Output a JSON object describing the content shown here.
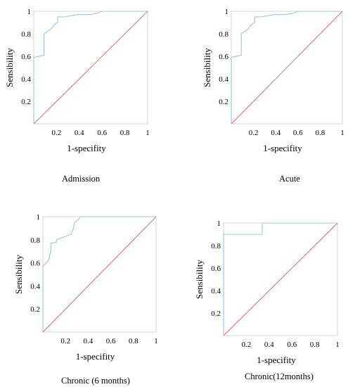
{
  "chart_data": [
    {
      "type": "line",
      "caption": "Admission",
      "xlabel": "1-specifity",
      "ylabel": "Sensibility",
      "xlim": [
        0,
        1
      ],
      "ylim": [
        0,
        1
      ],
      "xticks": [
        "0.2",
        "0.4",
        "0.6",
        "0.8",
        "1"
      ],
      "yticks": [
        "0.2",
        "0.4",
        "0.6",
        "0.8",
        "1"
      ],
      "grid": false,
      "roc_color": "#9cc3e6",
      "reference_color": "#e06a72",
      "x": [
        0,
        0,
        0.09,
        0.09,
        0.15,
        0.18,
        0.21,
        0.21,
        0.27,
        0.38,
        0.47,
        0.55,
        0.6,
        1.0
      ],
      "y": [
        0,
        0.59,
        0.61,
        0.8,
        0.84,
        0.88,
        0.9,
        0.95,
        0.95,
        0.97,
        0.97,
        0.98,
        1.0,
        1.0
      ],
      "reference_line": [
        [
          0,
          0
        ],
        [
          1,
          1
        ]
      ]
    },
    {
      "type": "line",
      "caption": "Acute",
      "xlabel": "1-specifity",
      "ylabel": "Sensibility",
      "xlim": [
        0,
        1
      ],
      "ylim": [
        0,
        1
      ],
      "xticks": [
        "0.2",
        "0.4",
        "0.6",
        "0.8",
        "1"
      ],
      "yticks": [
        "0.2",
        "0.4",
        "0.6",
        "0.8",
        "1"
      ],
      "grid": false,
      "roc_color": "#9cc3e6",
      "reference_color": "#e06a72",
      "x": [
        0,
        0,
        0.09,
        0.09,
        0.15,
        0.18,
        0.21,
        0.21,
        0.27,
        0.38,
        0.47,
        0.55,
        0.6,
        1.0
      ],
      "y": [
        0,
        0.59,
        0.61,
        0.8,
        0.84,
        0.88,
        0.9,
        0.95,
        0.95,
        0.97,
        0.97,
        0.98,
        1.0,
        1.0
      ],
      "reference_line": [
        [
          0,
          0
        ],
        [
          1,
          1
        ]
      ]
    },
    {
      "type": "line",
      "caption": "Chronic (6 months)",
      "xlabel": "1-specifity",
      "ylabel": "Sensibility",
      "xlim": [
        0,
        1
      ],
      "ylim": [
        0,
        1
      ],
      "xticks": [
        "0.2",
        "0.4",
        "0.6",
        "0.8",
        "1"
      ],
      "yticks": [
        "0.2",
        "0.4",
        "0.6",
        "0.8",
        "1"
      ],
      "grid": false,
      "roc_color": "#9cc3e6",
      "reference_color": "#e06a72",
      "x": [
        0,
        0,
        0.05,
        0.07,
        0.07,
        0.12,
        0.12,
        0.2,
        0.25,
        0.27,
        0.28,
        0.32,
        0.33,
        1.0
      ],
      "y": [
        0,
        0.57,
        0.62,
        0.7,
        0.77,
        0.78,
        0.8,
        0.83,
        0.85,
        0.9,
        0.95,
        0.98,
        1.0,
        1.0
      ],
      "reference_line": [
        [
          0,
          0
        ],
        [
          1,
          1
        ]
      ]
    },
    {
      "type": "line",
      "caption": "Chronic(12months)",
      "xlabel": "1-specifity",
      "ylabel": "Sensibility",
      "xlim": [
        0,
        1
      ],
      "ylim": [
        0,
        1
      ],
      "xticks": [
        "0.2",
        "0.4",
        "0.6",
        "0.8",
        "1"
      ],
      "yticks": [
        "0.2",
        "0.4",
        "0.6",
        "0.8",
        "1"
      ],
      "grid": false,
      "roc_color": "#9cc3e6",
      "reference_color": "#e06a72",
      "x": [
        0,
        0,
        0.34,
        0.34,
        1.0
      ],
      "y": [
        0,
        0.9,
        0.9,
        1.0,
        1.0
      ],
      "reference_line": [
        [
          0,
          0
        ],
        [
          1,
          1
        ]
      ]
    }
  ]
}
